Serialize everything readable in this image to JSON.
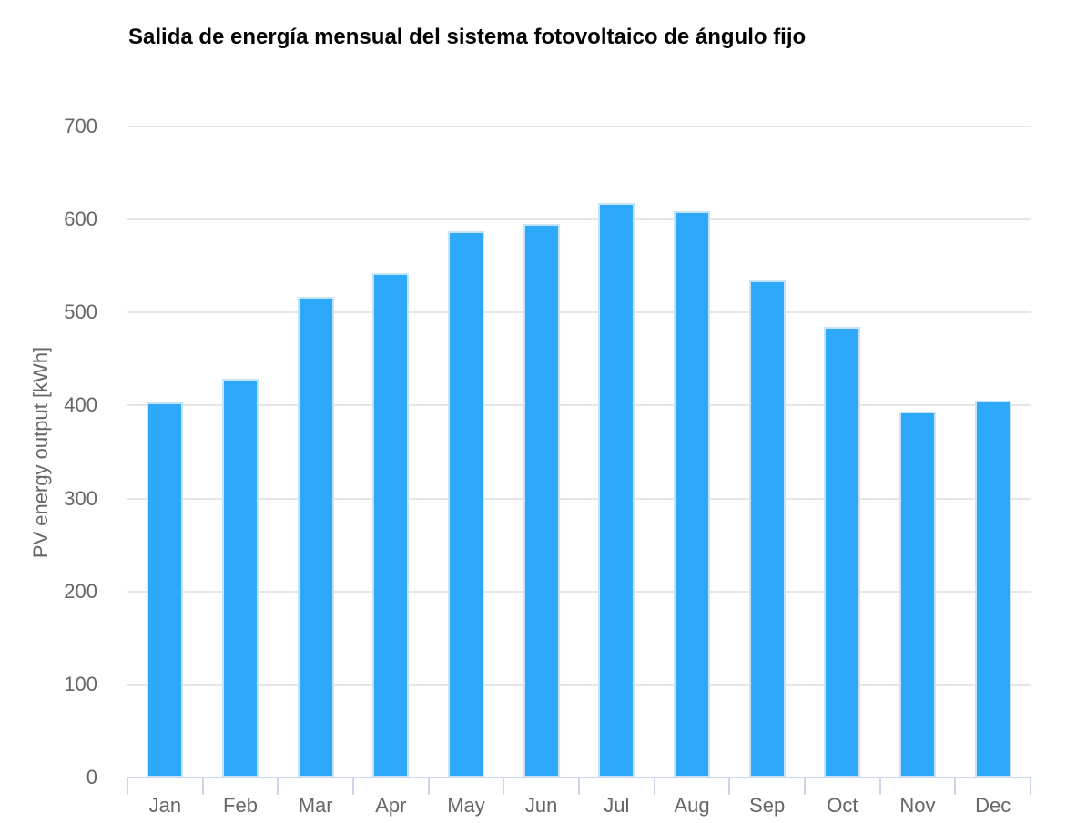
{
  "chart_data": {
    "type": "bar",
    "title": "Salida de energía mensual del sistema fotovoltaico de ángulo fijo",
    "xlabel": "",
    "ylabel": "PV energy output [kWh]",
    "categories": [
      "Jan",
      "Feb",
      "Mar",
      "Apr",
      "May",
      "Jun",
      "Jul",
      "Aug",
      "Sep",
      "Oct",
      "Nov",
      "Dec"
    ],
    "values": [
      403,
      429,
      517,
      542,
      587,
      595,
      618,
      609,
      535,
      485,
      394,
      405
    ],
    "ylim": [
      0,
      700
    ],
    "ytick_step": 100,
    "yticks": [
      "0",
      "100",
      "200",
      "300",
      "400",
      "500",
      "600",
      "700"
    ],
    "grid": true,
    "legend": "none",
    "colors": {
      "bar_fill": "#2EA9FA",
      "bar_border": "#C3E4FC",
      "gridline": "#E6E6E6",
      "axis_line": "#CCD6EB",
      "axis_label": "#666666",
      "title": "#000000"
    }
  }
}
